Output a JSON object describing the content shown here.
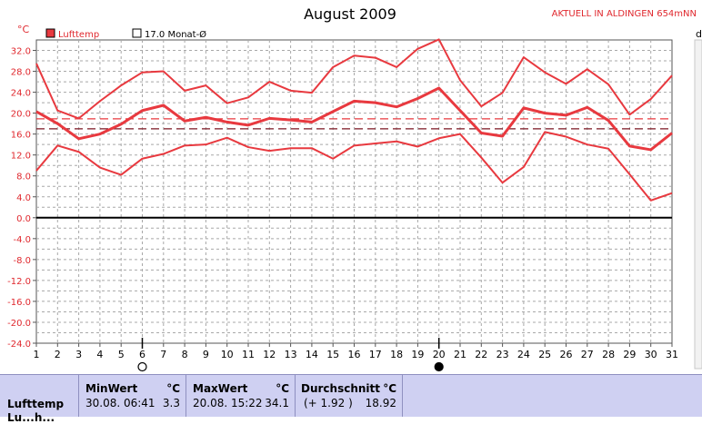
{
  "chart_data": {
    "type": "line",
    "title": "August 2009",
    "station_label": "AKTUELL IN ALDINGEN 654mNN",
    "y_unit": "°C",
    "right_edge_label": "d",
    "ylim": [
      -24,
      34
    ],
    "y_ticks": [
      "32.0",
      "28.0",
      "24.0",
      "20.0",
      "16.0",
      "12.0",
      "8.0",
      "4.0",
      "0.0",
      "-4.0",
      "-8.0",
      "-12.0",
      "-16.0",
      "-20.0",
      "-24.0"
    ],
    "y_tick_values": [
      32,
      28,
      24,
      20,
      16,
      12,
      8,
      4,
      0,
      -4,
      -8,
      -12,
      -16,
      -20,
      -24
    ],
    "x": [
      1,
      2,
      3,
      4,
      5,
      6,
      7,
      8,
      9,
      10,
      11,
      12,
      13,
      14,
      15,
      16,
      17,
      18,
      19,
      20,
      21,
      22,
      23,
      24,
      25,
      26,
      27,
      28,
      29,
      30,
      31
    ],
    "x_labels": [
      "1",
      "2",
      "3",
      "4",
      "5",
      "6",
      "7",
      "8",
      "9",
      "10",
      "11",
      "12",
      "13",
      "14",
      "15",
      "16",
      "17",
      "18",
      "19",
      "20",
      "21",
      "22",
      "23",
      "24",
      "25",
      "26",
      "27",
      "28",
      "29",
      "30",
      "31"
    ],
    "grid": true,
    "legend_position": "top-left",
    "legend": {
      "series_label": "Lufttemp",
      "series_color": "#e8393f",
      "monthly_avg_label": "17.0 Monat-Ø"
    },
    "series": [
      {
        "name": "Lufttemp",
        "role": "max",
        "color": "#e8393f",
        "values": [
          29.5,
          20.5,
          19.0,
          22.3,
          25.3,
          27.8,
          28.0,
          24.3,
          25.3,
          21.9,
          23.0,
          26.0,
          24.3,
          23.9,
          28.8,
          31.0,
          30.6,
          28.8,
          32.3,
          34.1,
          26.3,
          21.3,
          23.9,
          30.7,
          27.8,
          25.6,
          28.4,
          25.5,
          19.7,
          22.7,
          27.2
        ]
      },
      {
        "name": "Lufttemp",
        "role": "mean",
        "color": "#e8393f",
        "values": [
          20.3,
          18.0,
          15.1,
          16.0,
          17.9,
          20.5,
          21.5,
          18.5,
          19.2,
          18.3,
          17.7,
          19.0,
          18.7,
          18.3,
          20.3,
          22.3,
          22.0,
          21.2,
          22.8,
          24.8,
          20.5,
          16.2,
          15.6,
          21.0,
          20.0,
          19.6,
          21.1,
          18.6,
          13.7,
          13.0,
          16.2
        ]
      },
      {
        "name": "Lufttemp",
        "role": "min",
        "color": "#e8393f",
        "values": [
          9.0,
          13.8,
          12.6,
          9.6,
          8.2,
          11.3,
          12.2,
          13.8,
          14.0,
          15.3,
          13.5,
          12.8,
          13.3,
          13.3,
          11.3,
          13.8,
          14.2,
          14.6,
          13.6,
          15.2,
          16.0,
          11.5,
          6.7,
          9.7,
          16.4,
          15.5,
          14.0,
          13.2,
          8.3,
          3.3,
          4.7
        ]
      }
    ],
    "reference_lines": [
      {
        "value": 17.0,
        "style": "dashed",
        "color": "#7a1420"
      },
      {
        "value": 18.92,
        "style": "dashed",
        "color": "#e8393f"
      }
    ],
    "markers": [
      {
        "x": 6,
        "type": "open-circle"
      },
      {
        "x": 20,
        "type": "filled-circle"
      }
    ]
  },
  "stats": {
    "row_label": "Lufttemp",
    "row_label_2": "Lu...h...",
    "min_header": "MinWert",
    "min_unit": "°C",
    "min_datetime": "30.08.  06:41",
    "min_value": "3.3",
    "max_header": "MaxWert",
    "max_unit": "°C",
    "max_datetime": "20.08.  15:22",
    "max_value": "34.1",
    "avg_header": "Durchschnitt",
    "avg_unit": "°C",
    "avg_delta": "(+ 1.92 )",
    "avg_value": "18.92"
  }
}
